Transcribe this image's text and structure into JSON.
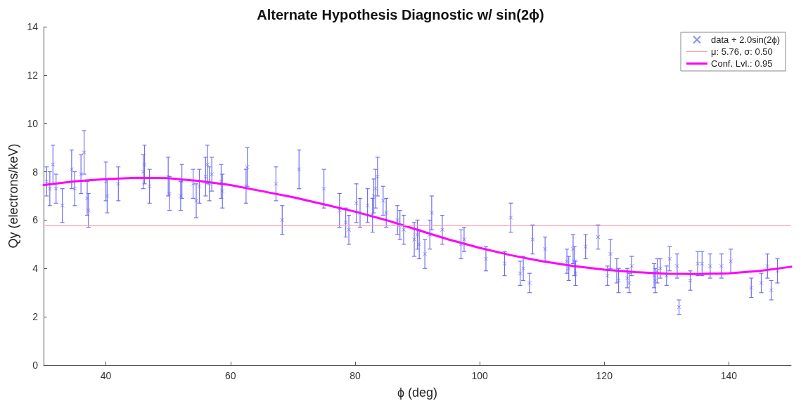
{
  "chart_data": {
    "type": "scatter",
    "title": "Alternate Hypothesis Diagnostic w/ sin(2ϕ)",
    "xlabel": "ϕ (deg)",
    "ylabel": "Qy (electrons/keV)",
    "xlim": [
      30,
      150
    ],
    "xticks": [
      40,
      60,
      80,
      100,
      120,
      140
    ],
    "ylim": [
      0,
      14
    ],
    "yticks": [
      0,
      2,
      4,
      6,
      8,
      10,
      12,
      14
    ],
    "grid": false,
    "legend": "top right",
    "marker": "cross",
    "ref_lines": [
      {
        "axis": "y",
        "value": 5.76,
        "label": "μ: 5.76, σ: 0.50",
        "color": "#ff9aa8",
        "line_style": "solid"
      }
    ],
    "series": [
      {
        "name": "data + 2.0sin(2ϕ)",
        "color": "#6f6ff2",
        "x": [
          30.5,
          31,
          31.5,
          32,
          33,
          34.5,
          35,
          36,
          36.5,
          37,
          37.2,
          40,
          40.2,
          42,
          46,
          46.2,
          47,
          50,
          50.2,
          52,
          52.2,
          54,
          54.5,
          55,
          56,
          56.3,
          56.6,
          57,
          58.5,
          58.7,
          62.5,
          62.7,
          67.3,
          68.3,
          71,
          75,
          77.5,
          78.5,
          79,
          80.2,
          80.8,
          82,
          82.8,
          83,
          83.3,
          83.6,
          84.5,
          85,
          86.8,
          87.2,
          87.8,
          89.5,
          90,
          90.3,
          91.2,
          92,
          92.3,
          94,
          97,
          97.5,
          101,
          104,
          105,
          106.5,
          107,
          108,
          108.5,
          110.5,
          114,
          114.3,
          115,
          115.2,
          115.4,
          117,
          119,
          120.5,
          121,
          122,
          122.3,
          123.7,
          124,
          124.4,
          128,
          128.2,
          128.5,
          129,
          130,
          130.5,
          131.7,
          132,
          133.8,
          135,
          135.7,
          137,
          138.8,
          140.3,
          143.6,
          145.2,
          146.2,
          146.8,
          147.8
        ],
        "values": [
          7.6,
          7.3,
          8.3,
          7.3,
          6.6,
          8.1,
          7.3,
          7.9,
          8.8,
          6.9,
          6.4,
          7.6,
          7.0,
          7.5,
          8.0,
          8.3,
          7.4,
          7.8,
          7.1,
          7.0,
          7.6,
          7.5,
          6.8,
          7.4,
          7.8,
          8.3,
          7.5,
          7.9,
          7.6,
          7.2,
          7.4,
          8.2,
          7.5,
          6.0,
          8.1,
          7.3,
          6.4,
          5.9,
          5.6,
          6.7,
          6.3,
          6.6,
          6.2,
          7.0,
          7.3,
          7.8,
          6.8,
          6.3,
          6.0,
          5.8,
          5.6,
          5.2,
          5.4,
          5.0,
          4.6,
          5.4,
          6.3,
          5.6,
          5.0,
          5.2,
          4.4,
          4.2,
          6.1,
          3.8,
          4.0,
          3.4,
          5.2,
          4.8,
          4.3,
          4.0,
          4.8,
          4.3,
          3.8,
          4.9,
          5.3,
          3.7,
          4.6,
          3.9,
          3.5,
          3.6,
          3.4,
          4.1,
          3.7,
          3.5,
          3.9,
          4.0,
          3.7,
          4.4,
          4.1,
          2.4,
          3.5,
          4.2,
          4.2,
          4.1,
          4.1,
          4.3,
          3.2,
          3.4,
          4.1,
          3.1,
          3.9
        ],
        "errors": [
          0.6,
          0.7,
          0.8,
          0.6,
          0.7,
          0.8,
          0.7,
          0.8,
          0.9,
          0.7,
          0.7,
          0.8,
          0.7,
          0.7,
          0.7,
          0.8,
          0.7,
          0.8,
          0.7,
          0.6,
          0.7,
          0.6,
          0.7,
          0.7,
          0.8,
          0.8,
          0.7,
          0.7,
          0.7,
          0.7,
          0.7,
          0.8,
          0.7,
          0.6,
          0.8,
          0.8,
          0.7,
          0.6,
          0.6,
          0.8,
          0.6,
          0.7,
          0.7,
          0.7,
          0.8,
          0.8,
          0.6,
          0.6,
          0.6,
          0.6,
          0.6,
          0.7,
          0.6,
          0.6,
          0.6,
          0.6,
          0.7,
          0.6,
          0.6,
          0.5,
          0.5,
          0.5,
          0.6,
          0.5,
          0.5,
          0.4,
          0.6,
          0.5,
          0.5,
          0.5,
          0.6,
          0.6,
          0.5,
          0.5,
          0.5,
          0.4,
          0.6,
          0.5,
          0.5,
          0.4,
          0.4,
          0.4,
          0.5,
          0.5,
          0.5,
          0.4,
          0.4,
          0.5,
          0.5,
          0.3,
          0.4,
          0.5,
          0.5,
          0.5,
          0.5,
          0.5,
          0.4,
          0.4,
          0.5,
          0.4,
          0.5
        ]
      },
      {
        "name": "Conf. Lvl.: 0.95",
        "type": "line",
        "color": "#ff00ff",
        "marker": "none",
        "line_style": "solid",
        "x": [
          30,
          35,
          40,
          45,
          50,
          55,
          60,
          65,
          70,
          75,
          80,
          85,
          90,
          95,
          100,
          105,
          110,
          115,
          120,
          125,
          130,
          135,
          140,
          145,
          150
        ],
        "values": [
          7.45,
          7.6,
          7.7,
          7.75,
          7.73,
          7.62,
          7.45,
          7.2,
          6.95,
          6.65,
          6.35,
          6.0,
          5.6,
          5.2,
          4.85,
          4.55,
          4.3,
          4.1,
          3.95,
          3.85,
          3.78,
          3.77,
          3.8,
          3.9,
          4.07
        ]
      }
    ]
  }
}
